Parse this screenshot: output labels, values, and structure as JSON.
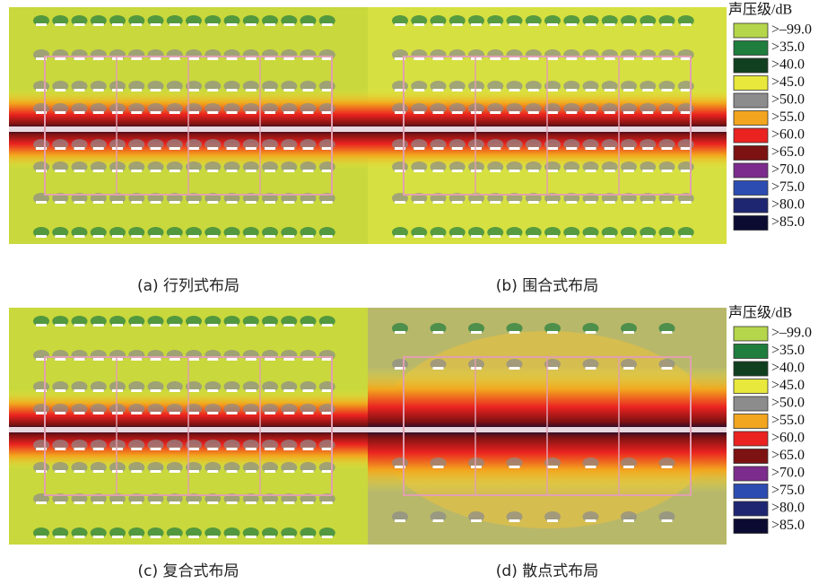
{
  "panels": [
    {
      "caption": "(a) 行列式布局"
    },
    {
      "caption": "(b) 围合式布局"
    },
    {
      "caption": "(c) 复合式布局"
    },
    {
      "caption": "(d) 散点式布局"
    }
  ],
  "legends": [
    {
      "title": "声压级/dB",
      "items": [
        {
          "label": ">–99.0",
          "color": "#b5d64a"
        },
        {
          "label": ">35.0",
          "color": "#1f7d3e"
        },
        {
          "label": ">40.0",
          "color": "#10401f"
        },
        {
          "label": ">45.0",
          "color": "#e8e83c"
        },
        {
          "label": ">50.0",
          "color": "#8c8c8c"
        },
        {
          "label": ">55.0",
          "color": "#f2a51e"
        },
        {
          "label": ">60.0",
          "color": "#ea2320"
        },
        {
          "label": ">65.0",
          "color": "#7c1212"
        },
        {
          "label": ">70.0",
          "color": "#7c2c8c"
        },
        {
          "label": ">75.0",
          "color": "#2c4cb2"
        },
        {
          "label": ">80.0",
          "color": "#1e2672"
        },
        {
          "label": ">85.0",
          "color": "#0b0b32"
        }
      ]
    },
    {
      "title": "声压级/dB",
      "items": [
        {
          "label": ">–99.0",
          "color": "#b5d64a"
        },
        {
          "label": ">35.0",
          "color": "#1f7d3e"
        },
        {
          "label": ">40.0",
          "color": "#10401f"
        },
        {
          "label": ">45.0",
          "color": "#e8e83c"
        },
        {
          "label": ">50.0",
          "color": "#8c8c8c"
        },
        {
          "label": ">55.0",
          "color": "#f2a51e"
        },
        {
          "label": ">60.0",
          "color": "#ea2320"
        },
        {
          "label": ">65.0",
          "color": "#7c1212"
        },
        {
          "label": ">70.0",
          "color": "#7c2c8c"
        },
        {
          "label": ">75.0",
          "color": "#2c4cb2"
        },
        {
          "label": ">80.0",
          "color": "#1e2672"
        },
        {
          "label": ">85.0",
          "color": "#0b0b32"
        }
      ]
    }
  ]
}
